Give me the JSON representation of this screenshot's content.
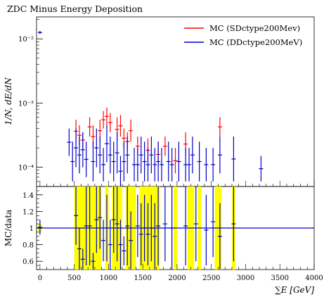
{
  "chart_data": [
    {
      "type": "scatter",
      "title": "ZDC Minus Energy Deposition",
      "ylabel": "1/N, dE/dN",
      "xlabel": "",
      "xlim": [
        -50,
        4000
      ],
      "ylim": [
        5e-05,
        0.022
      ],
      "yscale": "log",
      "yticks": [
        0.0001,
        0.001,
        0.01
      ],
      "ytick_labels": [
        "10⁻⁴",
        "10⁻³",
        "10⁻²"
      ],
      "legend_position": "top-right",
      "colors": {
        "sd": "#ff0000",
        "dd": "#0000cc"
      },
      "series": [
        {
          "name": "MC (SDctype200Mev)",
          "color": "#ff0000",
          "points": [
            [
              0,
              0.0121,
              0.0131
            ],
            [
              525,
              0.00024,
              0.00055
            ],
            [
              575,
              0.00022,
              0.00045
            ],
            [
              625,
              0.0002,
              0.00035
            ],
            [
              725,
              0.0003,
              0.0006
            ],
            [
              775,
              0.0002,
              0.00045
            ],
            [
              875,
              0.00025,
              0.00055
            ],
            [
              925,
              0.0004,
              0.00075
            ],
            [
              975,
              0.00045,
              0.00085
            ],
            [
              1025,
              0.00035,
              0.0007
            ],
            [
              1125,
              0.00025,
              0.0006
            ],
            [
              1175,
              0.0003,
              0.00065
            ],
            [
              1225,
              0.0002,
              0.0004
            ],
            [
              1275,
              0.00018,
              0.00035
            ],
            [
              1325,
              0.00025,
              0.00055
            ],
            [
              1425,
              0.00015,
              0.0003
            ],
            [
              1575,
              0.00012,
              0.00028
            ],
            [
              1725,
              0.0001,
              0.00025
            ],
            [
              1825,
              0.00015,
              0.0003
            ],
            [
              1975,
              8e-05,
              0.0002
            ],
            [
              2125,
              0.00015,
              0.00035
            ],
            [
              2625,
              0.0003,
              0.0006
            ]
          ]
        },
        {
          "name": "MC (DDctype200MeV)",
          "color": "#0000cc",
          "points": [
            [
              0,
              0.0119,
              0.0133
            ],
            [
              425,
              0.00015,
              0.0004
            ],
            [
              475,
              6e-05,
              0.00025
            ],
            [
              525,
              0.0001,
              0.0004
            ],
            [
              575,
              8e-05,
              0.0003
            ],
            [
              625,
              0.0001,
              0.00035
            ],
            [
              675,
              7e-05,
              0.00025
            ],
            [
              775,
              6e-05,
              0.00025
            ],
            [
              825,
              0.0001,
              0.0004
            ],
            [
              875,
              8e-05,
              0.0003
            ],
            [
              925,
              6e-05,
              0.0002
            ],
            [
              975,
              0.00012,
              0.00045
            ],
            [
              1025,
              8e-05,
              0.0003
            ],
            [
              1075,
              6e-05,
              0.00025
            ],
            [
              1125,
              8e-05,
              0.00035
            ],
            [
              1175,
              5e-05,
              0.00015
            ],
            [
              1225,
              6e-05,
              0.00025
            ],
            [
              1275,
              8e-05,
              0.0003
            ],
            [
              1375,
              6e-05,
              0.0002
            ],
            [
              1425,
              6e-05,
              0.0002
            ],
            [
              1475,
              8e-05,
              0.0003
            ],
            [
              1525,
              6e-05,
              0.00025
            ],
            [
              1575,
              6e-05,
              0.0002
            ],
            [
              1625,
              8e-05,
              0.0003
            ],
            [
              1675,
              6e-05,
              0.0002
            ],
            [
              1725,
              6e-05,
              0.00025
            ],
            [
              1775,
              6e-05,
              0.0002
            ],
            [
              1875,
              6e-05,
              0.00025
            ],
            [
              1925,
              6e-05,
              0.0002
            ],
            [
              2025,
              6e-05,
              0.00025
            ],
            [
              2125,
              6e-05,
              0.0002
            ],
            [
              2175,
              6e-05,
              0.0002
            ],
            [
              2225,
              8e-05,
              0.0003
            ],
            [
              2325,
              6e-05,
              0.00025
            ],
            [
              2425,
              6e-05,
              0.0002
            ],
            [
              2525,
              6e-05,
              0.0002
            ],
            [
              2625,
              8e-05,
              0.0003
            ],
            [
              2825,
              6e-05,
              0.0003
            ],
            [
              3225,
              6e-05,
              0.00015
            ]
          ]
        }
      ],
      "legend": [
        {
          "label": "MC (SDctype200Mev)",
          "color": "#ff0000"
        },
        {
          "label": "MC (DDctype200MeV)",
          "color": "#0000cc"
        }
      ]
    },
    {
      "type": "scatter",
      "title": "",
      "ylabel": "MC/data",
      "xlabel": "∑E [GeV]",
      "xlim": [
        -50,
        4000
      ],
      "ylim": [
        0.5,
        1.5
      ],
      "yticks": [
        0.6,
        0.8,
        1.0,
        1.2,
        1.4
      ],
      "ytick_labels": [
        "0.6",
        "0.8",
        "1",
        "1.2",
        "1.4"
      ],
      "xticks": [
        0,
        500,
        1000,
        1500,
        2000,
        2500,
        3000,
        3500,
        4000
      ],
      "xtick_labels": [
        "0",
        "500",
        "1000",
        "1500",
        "2000",
        "2500",
        "3000",
        "3500",
        "4000"
      ],
      "reference_line": 1.0,
      "band_color": "#ffff00",
      "bands": [
        [
          -25,
          25,
          0.95,
          1.05
        ],
        [
          500,
          900,
          0.5,
          1.5
        ],
        [
          950,
          1000,
          0.5,
          1.5
        ],
        [
          1050,
          1200,
          0.5,
          1.5
        ],
        [
          1250,
          1400,
          0.5,
          1.5
        ],
        [
          1450,
          1750,
          0.5,
          1.5
        ],
        [
          1950,
          2000,
          0.5,
          1.5
        ],
        [
          2150,
          2250,
          0.5,
          1.5
        ],
        [
          2300,
          2350,
          0.5,
          1.5
        ],
        [
          2550,
          2650,
          0.5,
          1.5
        ],
        [
          2800,
          2850,
          0.5,
          1.5
        ]
      ],
      "series": [
        {
          "color": "#0000cc",
          "points": [
            [
              0,
              0.92,
              1.1
            ],
            [
              525,
              0.8,
              1.5
            ],
            [
              575,
              0.5,
              1.0
            ],
            [
              625,
              0.5,
              0.75
            ],
            [
              675,
              0.55,
              1.5
            ],
            [
              725,
              0.55,
              1.5
            ],
            [
              775,
              0.5,
              0.7
            ],
            [
              825,
              0.7,
              1.5
            ],
            [
              875,
              0.75,
              1.5
            ],
            [
              925,
              0.6,
              1.1
            ],
            [
              975,
              0.6,
              1.4
            ],
            [
              1025,
              0.5,
              1.1
            ],
            [
              1075,
              0.7,
              1.5
            ],
            [
              1125,
              0.6,
              1.5
            ],
            [
              1175,
              0.5,
              1.1
            ],
            [
              1225,
              0.55,
              0.9
            ],
            [
              1275,
              0.55,
              1.5
            ],
            [
              1325,
              0.5,
              1.2
            ],
            [
              1425,
              0.65,
              1.4
            ],
            [
              1475,
              0.55,
              1.3
            ],
            [
              1525,
              0.6,
              1.4
            ],
            [
              1575,
              0.55,
              1.3
            ],
            [
              1625,
              0.6,
              1.4
            ],
            [
              1675,
              0.5,
              1.3
            ],
            [
              1725,
              0.55,
              1.5
            ],
            [
              1825,
              0.6,
              1.5
            ],
            [
              1925,
              0.5,
              1.5
            ],
            [
              2125,
              0.55,
              1.5
            ],
            [
              2275,
              0.6,
              1.5
            ],
            [
              2425,
              0.55,
              1.4
            ],
            [
              2525,
              0.65,
              1.5
            ],
            [
              2625,
              0.5,
              1.3
            ],
            [
              2825,
              0.6,
              1.5
            ]
          ]
        }
      ]
    }
  ]
}
